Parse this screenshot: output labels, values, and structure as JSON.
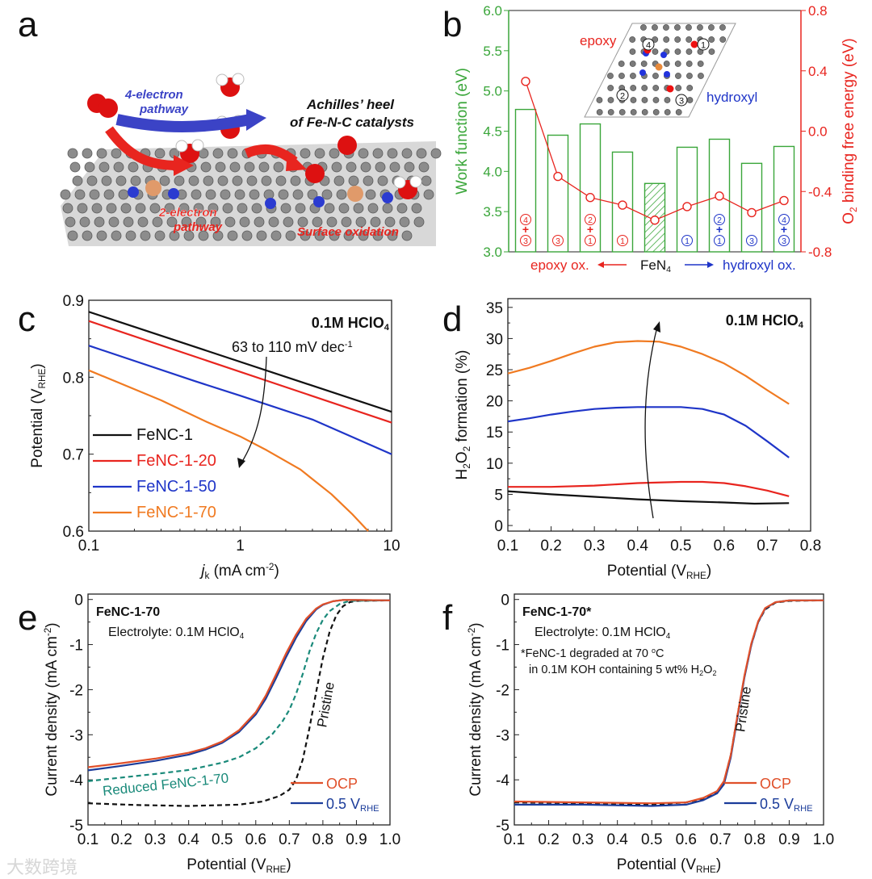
{
  "colors": {
    "black": "#111111",
    "red": "#e8251f",
    "blue": "#1f35c8",
    "orange": "#f07a21",
    "green": "#3aa63a",
    "teal": "#1a8a7a",
    "navy": "#1b3c9a",
    "ocp": "#e0502a"
  },
  "watermark": "大数跨境",
  "chart_data": [
    {
      "panel": "a",
      "type": "illustration",
      "title": "Achilles' heel of Fe-N-C catalysts",
      "title_lines": [
        "Achilles’ heel",
        "of Fe-N-C catalysts"
      ],
      "labels": {
        "four_e_1": "4-electron",
        "four_e_2": "pathway",
        "two_e_1": "2-electron",
        "two_e_2": "pathway",
        "surface": "Surface oxidation"
      }
    },
    {
      "panel": "b",
      "type": "bar",
      "categories": [
        "4+3 epoxy",
        "3 epoxy",
        "2+1 epoxy",
        "1 epoxy",
        "FeN4",
        "1 hydroxyl",
        "2+1 hydroxyl",
        "3 hydroxyl",
        "4+3 hydroxyl"
      ],
      "bar_labels": [
        {
          "top": "4",
          "bot": "3",
          "color": "red"
        },
        {
          "top": "",
          "bot": "3",
          "color": "red"
        },
        {
          "top": "2",
          "bot": "1",
          "color": "red"
        },
        {
          "top": "",
          "bot": "1",
          "color": "red"
        },
        {
          "top": "",
          "bot": "",
          "color": "green"
        },
        {
          "top": "",
          "bot": "1",
          "color": "blue"
        },
        {
          "top": "2",
          "bot": "1",
          "color": "blue"
        },
        {
          "top": "",
          "bot": "3",
          "color": "blue"
        },
        {
          "top": "4",
          "bot": "3",
          "color": "blue"
        }
      ],
      "plus": "+",
      "series": [
        {
          "name": "Work function",
          "axis": "left",
          "type": "bar",
          "values": [
            4.77,
            4.45,
            4.59,
            4.24,
            3.85,
            4.3,
            4.4,
            4.1,
            4.31
          ],
          "hatched_index": 4
        },
        {
          "name": "O2 binding free energy",
          "axis": "right",
          "type": "line",
          "values": [
            0.33,
            -0.3,
            -0.44,
            -0.49,
            -0.59,
            -0.5,
            -0.43,
            -0.54,
            -0.46
          ]
        }
      ],
      "ylabel": "Work function (eV)",
      "y2label": [
        [
          "O"
        ],
        [
          "2",
          "sub"
        ],
        [
          " binding free energy (eV)"
        ]
      ],
      "ylim": [
        3.0,
        6.0
      ],
      "yticks": [
        "3.0",
        "3.5",
        "4.0",
        "4.5",
        "5.0",
        "5.5",
        "6.0"
      ],
      "y2lim": [
        -0.8,
        0.8
      ],
      "y2ticks": [
        "-0.8",
        "-0.4",
        "0.0",
        "0.4",
        "0.8"
      ],
      "xaxis": {
        "left": "epoxy ox.",
        "center": [
          [
            "FeN"
          ],
          [
            "4",
            "sub"
          ]
        ],
        "right": "hydroxyl ox."
      },
      "inset": {
        "epoxy": "epoxy",
        "hydroxyl": "hydroxyl",
        "sites": [
          "1",
          "2",
          "3",
          "4"
        ]
      }
    },
    {
      "panel": "c",
      "type": "line",
      "xscale": "log",
      "xlabel": [
        [
          "j",
          "i"
        ],
        [
          "k",
          "sub"
        ],
        [
          " (mA cm"
        ],
        [
          "-2",
          "sup"
        ],
        [
          ")"
        ]
      ],
      "ylabel": [
        [
          "Potential (V"
        ],
        [
          "RHE",
          "sub"
        ],
        [
          ")"
        ]
      ],
      "xlim": [
        0.1,
        10
      ],
      "xticks": [
        0.1,
        1,
        10
      ],
      "xticklabels": [
        "0.1",
        "1",
        "10"
      ],
      "ylim": [
        0.6,
        0.9
      ],
      "yticks": [
        0.6,
        0.7,
        0.8,
        0.9
      ],
      "yticklabels": [
        "0.6",
        "0.7",
        "0.8",
        "0.9"
      ],
      "condition": [
        [
          "0.1M HClO"
        ],
        [
          "4",
          "sub"
        ]
      ],
      "annotation": [
        [
          "63 to 110 mV dec"
        ],
        [
          "-1",
          "sup"
        ]
      ],
      "legend_position": "bottom-left",
      "series": [
        {
          "name": "FeNC-1",
          "color": "#111111",
          "x": [
            0.1,
            10
          ],
          "y": [
            0.885,
            0.755
          ]
        },
        {
          "name": "FeNC-1-20",
          "color": "#e8251f",
          "x": [
            0.1,
            10
          ],
          "y": [
            0.873,
            0.741
          ]
        },
        {
          "name": "FeNC-1-50",
          "color": "#1f35c8",
          "x": [
            0.1,
            0.5,
            1,
            3,
            10
          ],
          "y": [
            0.841,
            0.795,
            0.776,
            0.745,
            0.7
          ]
        },
        {
          "name": "FeNC-1-70",
          "color": "#f07a21",
          "x": [
            0.1,
            0.3,
            0.6,
            1,
            1.5,
            2.5,
            4,
            5.5,
            7
          ],
          "y": [
            0.809,
            0.77,
            0.742,
            0.723,
            0.705,
            0.68,
            0.648,
            0.622,
            0.6
          ]
        }
      ]
    },
    {
      "panel": "d",
      "type": "line",
      "xlabel": [
        [
          "Potential (V"
        ],
        [
          "RHE",
          "sub"
        ],
        [
          ")"
        ]
      ],
      "ylabel": [
        [
          "H"
        ],
        [
          "2",
          "sub"
        ],
        [
          "O"
        ],
        [
          "2",
          "sub"
        ],
        [
          " formation (%)"
        ]
      ],
      "xlim": [
        0.1,
        0.8
      ],
      "xticks": [
        0.1,
        0.2,
        0.3,
        0.4,
        0.5,
        0.6,
        0.7,
        0.8
      ],
      "xticklabels": [
        "0.1",
        "0.2",
        "0.3",
        "0.4",
        "0.5",
        "0.6",
        "0.7",
        "0.8"
      ],
      "ylim": [
        -0.9,
        36.4
      ],
      "yticks": [
        0,
        5,
        10,
        15,
        20,
        25,
        30,
        35
      ],
      "yticklabels": [
        "0",
        "5",
        "10",
        "15",
        "20",
        "25",
        "30",
        "35"
      ],
      "condition": [
        [
          "0.1M HClO"
        ],
        [
          "4",
          "sub"
        ]
      ],
      "series": [
        {
          "name": "FeNC-1-70",
          "color": "#f07a21",
          "x": [
            0.1,
            0.15,
            0.2,
            0.25,
            0.3,
            0.35,
            0.4,
            0.45,
            0.5,
            0.55,
            0.6,
            0.65,
            0.7,
            0.75
          ],
          "y": [
            24.4,
            25.3,
            26.4,
            27.6,
            28.7,
            29.4,
            29.6,
            29.5,
            28.7,
            27.5,
            26,
            24,
            21.7,
            19.5
          ]
        },
        {
          "name": "FeNC-1-50",
          "color": "#1f35c8",
          "x": [
            0.1,
            0.15,
            0.2,
            0.25,
            0.3,
            0.35,
            0.4,
            0.45,
            0.5,
            0.55,
            0.6,
            0.65,
            0.7,
            0.75
          ],
          "y": [
            16.7,
            17.2,
            17.8,
            18.3,
            18.7,
            18.9,
            19.0,
            19.0,
            19.0,
            18.7,
            17.8,
            16.0,
            13.5,
            10.9
          ]
        },
        {
          "name": "FeNC-1-20",
          "color": "#e8251f",
          "x": [
            0.1,
            0.2,
            0.3,
            0.4,
            0.5,
            0.55,
            0.6,
            0.65,
            0.7,
            0.75
          ],
          "y": [
            6.2,
            6.2,
            6.4,
            6.8,
            7.0,
            7.0,
            6.8,
            6.3,
            5.6,
            4.7
          ]
        },
        {
          "name": "FeNC-1",
          "color": "#111111",
          "x": [
            0.1,
            0.2,
            0.3,
            0.4,
            0.5,
            0.6,
            0.67,
            0.75
          ],
          "y": [
            5.5,
            5.0,
            4.6,
            4.2,
            3.9,
            3.7,
            3.5,
            3.6
          ]
        }
      ]
    },
    {
      "panel": "e",
      "type": "line",
      "xlabel": [
        [
          "Potential (V"
        ],
        [
          "RHE",
          "sub"
        ],
        [
          ")"
        ]
      ],
      "ylabel": [
        [
          "Current density (mA cm"
        ],
        [
          "-2",
          "sup"
        ],
        [
          ")"
        ]
      ],
      "xlim": [
        0.1,
        1.0
      ],
      "xticks": [
        0.1,
        0.2,
        0.3,
        0.4,
        0.5,
        0.6,
        0.7,
        0.8,
        0.9,
        1.0
      ],
      "xticklabels": [
        "0.1",
        "0.2",
        "0.3",
        "0.4",
        "0.5",
        "0.6",
        "0.7",
        "0.8",
        "0.9",
        "1.0"
      ],
      "ylim": [
        -5,
        0.12
      ],
      "yticks": [
        -5,
        -4,
        -3,
        -2,
        -1,
        0
      ],
      "yticklabels": [
        "-5",
        "-4",
        "-3",
        "-2",
        "-1",
        "0"
      ],
      "title": "FeNC-1-70",
      "subtitle": [
        [
          "Electrolyte: 0.1M HClO"
        ],
        [
          "4",
          "sub"
        ]
      ],
      "curve_labels": {
        "pristine": "Pristine",
        "reduced": "Reduced FeNC-1-70"
      },
      "legend_position": "bottom-right",
      "series": [
        {
          "name": "Pristine",
          "legend": false,
          "color": "#111111",
          "dashed": true,
          "x": [
            0.1,
            0.25,
            0.4,
            0.55,
            0.62,
            0.67,
            0.7,
            0.72,
            0.74,
            0.76,
            0.78,
            0.8,
            0.82,
            0.84,
            0.86,
            0.88,
            0.9,
            1.0
          ],
          "y": [
            -4.52,
            -4.56,
            -4.58,
            -4.55,
            -4.48,
            -4.36,
            -4.22,
            -4.0,
            -3.55,
            -2.85,
            -2.05,
            -1.3,
            -0.72,
            -0.35,
            -0.15,
            -0.06,
            -0.03,
            -0.02
          ]
        },
        {
          "name": "Reduced FeNC-1-70",
          "legend": false,
          "color": "#1a8a7a",
          "dashed": true,
          "x": [
            0.1,
            0.2,
            0.3,
            0.4,
            0.5,
            0.55,
            0.6,
            0.65,
            0.68,
            0.7,
            0.72,
            0.74,
            0.76,
            0.78,
            0.8,
            0.82,
            0.85,
            0.88,
            1.0
          ],
          "y": [
            -4.03,
            -3.95,
            -3.87,
            -3.78,
            -3.62,
            -3.5,
            -3.3,
            -2.98,
            -2.7,
            -2.45,
            -2.1,
            -1.65,
            -1.15,
            -0.75,
            -0.45,
            -0.26,
            -0.1,
            -0.03,
            -0.02
          ]
        },
        {
          "name": "0.5 V_RHE",
          "legend_label": [
            [
              "0.5 V"
            ],
            [
              "RHE",
              "sub"
            ]
          ],
          "color": "#1b3c9a",
          "x": [
            0.1,
            0.2,
            0.3,
            0.4,
            0.45,
            0.5,
            0.55,
            0.6,
            0.63,
            0.66,
            0.69,
            0.72,
            0.75,
            0.78,
            0.8,
            0.83,
            0.86,
            0.9,
            1.0
          ],
          "y": [
            -3.79,
            -3.69,
            -3.58,
            -3.44,
            -3.33,
            -3.18,
            -2.94,
            -2.55,
            -2.2,
            -1.75,
            -1.28,
            -0.85,
            -0.48,
            -0.22,
            -0.12,
            -0.04,
            -0.01,
            -0.01,
            -0.02
          ]
        },
        {
          "name": "OCP",
          "legend_label": [
            [
              "OCP"
            ]
          ],
          "color": "#e0502a",
          "x": [
            0.1,
            0.2,
            0.3,
            0.4,
            0.45,
            0.5,
            0.55,
            0.6,
            0.63,
            0.66,
            0.69,
            0.72,
            0.75,
            0.78,
            0.8,
            0.83,
            0.86,
            0.9,
            1.0
          ],
          "y": [
            -3.72,
            -3.63,
            -3.53,
            -3.4,
            -3.3,
            -3.15,
            -2.9,
            -2.5,
            -2.13,
            -1.67,
            -1.2,
            -0.78,
            -0.43,
            -0.2,
            -0.11,
            -0.04,
            -0.01,
            -0.01,
            -0.02
          ]
        }
      ]
    },
    {
      "panel": "f",
      "type": "line",
      "xlabel": [
        [
          "Potential (V"
        ],
        [
          "RHE",
          "sub"
        ],
        [
          ")"
        ]
      ],
      "ylabel": [
        [
          "Current density (mA cm"
        ],
        [
          "-2",
          "sup"
        ],
        [
          ")"
        ]
      ],
      "xlim": [
        0.1,
        1.0
      ],
      "xticks": [
        0.1,
        0.2,
        0.3,
        0.4,
        0.5,
        0.6,
        0.7,
        0.8,
        0.9,
        1.0
      ],
      "xticklabels": [
        "0.1",
        "0.2",
        "0.3",
        "0.4",
        "0.5",
        "0.6",
        "0.7",
        "0.8",
        "0.9",
        "1.0"
      ],
      "ylim": [
        -5,
        0.12
      ],
      "yticks": [
        -5,
        -4,
        -3,
        -2,
        -1,
        0
      ],
      "yticklabels": [
        "-5",
        "-4",
        "-3",
        "-2",
        "-1",
        "0"
      ],
      "title": "FeNC-1-70*",
      "subtitle": [
        [
          "Electrolyte: 0.1M HClO"
        ],
        [
          "4",
          "sub"
        ]
      ],
      "note1": [
        [
          "*FeNC-1 degraded at 70 "
        ],
        [
          "o",
          "sup"
        ],
        [
          "C"
        ]
      ],
      "note2": [
        [
          "in 0.1M KOH containing 5 wt% H"
        ],
        [
          "2",
          "sub"
        ],
        [
          "O"
        ],
        [
          "2",
          "sub"
        ]
      ],
      "curve_labels": {
        "pristine": "Pristine"
      },
      "legend_position": "bottom-right",
      "series": [
        {
          "name": "Pristine",
          "legend": false,
          "color": "#111111",
          "dashed": true,
          "x": [
            0.1,
            0.3,
            0.5,
            0.6,
            0.65,
            0.69,
            0.71,
            0.73,
            0.75,
            0.77,
            0.79,
            0.81,
            0.83,
            0.86,
            0.9,
            1.0
          ],
          "y": [
            -4.5,
            -4.52,
            -4.55,
            -4.5,
            -4.42,
            -4.28,
            -4.05,
            -3.45,
            -2.55,
            -1.7,
            -1.0,
            -0.5,
            -0.22,
            -0.07,
            -0.03,
            -0.02
          ]
        },
        {
          "name": "0.5 V_RHE",
          "legend_label": [
            [
              "0.5 V"
            ],
            [
              "RHE",
              "sub"
            ]
          ],
          "color": "#1b3c9a",
          "x": [
            0.1,
            0.3,
            0.5,
            0.6,
            0.65,
            0.69,
            0.71,
            0.73,
            0.75,
            0.77,
            0.79,
            0.81,
            0.83,
            0.86,
            0.9,
            1.0
          ],
          "y": [
            -4.55,
            -4.55,
            -4.58,
            -4.55,
            -4.45,
            -4.3,
            -4.1,
            -3.5,
            -2.6,
            -1.72,
            -1.0,
            -0.5,
            -0.2,
            -0.06,
            -0.02,
            -0.02
          ]
        },
        {
          "name": "OCP",
          "legend_label": [
            [
              "OCP"
            ]
          ],
          "color": "#e0502a",
          "x": [
            0.1,
            0.3,
            0.5,
            0.6,
            0.65,
            0.69,
            0.71,
            0.73,
            0.75,
            0.77,
            0.79,
            0.81,
            0.83,
            0.86,
            0.9,
            1.0
          ],
          "y": [
            -4.48,
            -4.5,
            -4.52,
            -4.5,
            -4.4,
            -4.25,
            -4.03,
            -3.45,
            -2.55,
            -1.68,
            -0.97,
            -0.48,
            -0.19,
            -0.06,
            -0.02,
            -0.02
          ]
        }
      ]
    }
  ],
  "panel_labels": [
    "a",
    "b",
    "c",
    "d",
    "e",
    "f"
  ]
}
